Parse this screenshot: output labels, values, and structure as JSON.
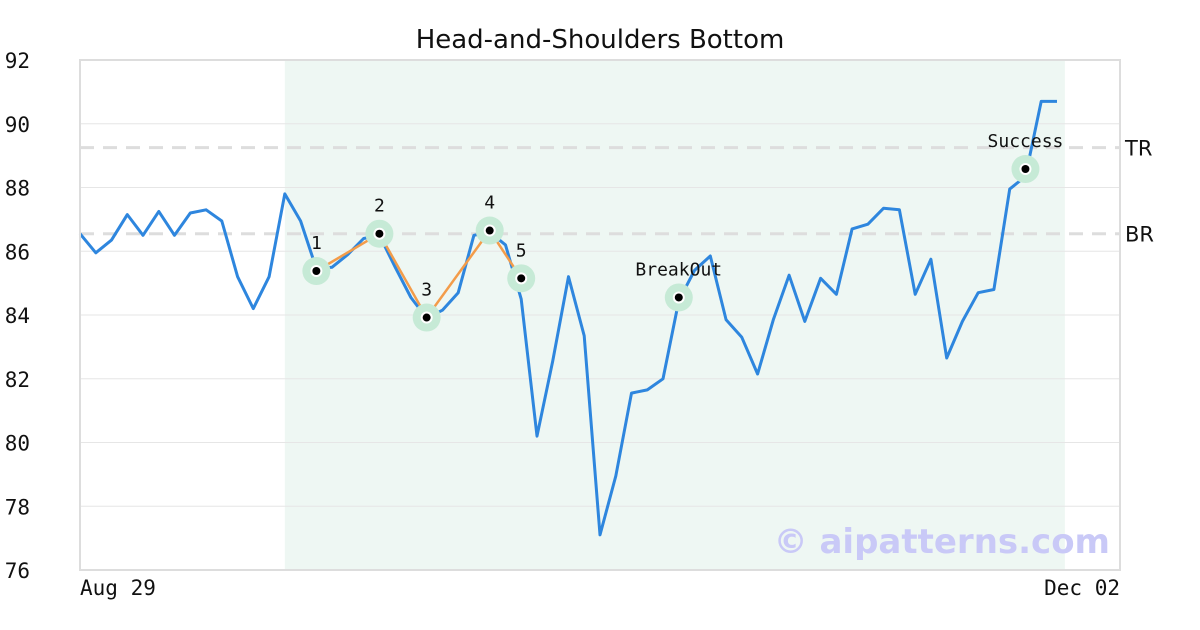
{
  "chart_data": {
    "type": "line",
    "title": "Head-and-Shoulders Bottom",
    "xlabel": "",
    "ylabel": "",
    "ylim": [
      76,
      92
    ],
    "yticks": [
      76,
      78,
      80,
      82,
      84,
      86,
      88,
      90,
      92
    ],
    "x_tick_labels": [
      "Aug 29",
      "Dec 02"
    ],
    "grid": true,
    "x": [
      0,
      1,
      2,
      3,
      4,
      5,
      6,
      7,
      8,
      9,
      10,
      11,
      12,
      13,
      14,
      15,
      16,
      17,
      18,
      19,
      20,
      21,
      22,
      23,
      24,
      25,
      26,
      27,
      28,
      29,
      30,
      31,
      32,
      33,
      34,
      35,
      36,
      37,
      38,
      39,
      40,
      41,
      42,
      43,
      44,
      45,
      46,
      47,
      48,
      49,
      50,
      51,
      52,
      53,
      54,
      55,
      56,
      57,
      58,
      59,
      60,
      61,
      62,
      63,
      64,
      65,
      66
    ],
    "series": [
      {
        "color": "#2e86de",
        "values": [
          86.55,
          85.95,
          86.35,
          87.15,
          86.5,
          87.25,
          86.5,
          87.2,
          87.3,
          86.95,
          85.2,
          84.2,
          85.2,
          87.8,
          86.95,
          85.45,
          85.5,
          85.9,
          86.4,
          86.5,
          85.5,
          84.55,
          83.9,
          84.15,
          84.7,
          86.5,
          86.6,
          86.2,
          84.5,
          80.2,
          82.55,
          85.2,
          83.35,
          77.1,
          78.95,
          81.55,
          81.65,
          82.0,
          84.45,
          85.4,
          85.85,
          83.85,
          83.3,
          82.15,
          83.85,
          85.25,
          83.8,
          85.15,
          84.65,
          86.7,
          86.85,
          87.35,
          87.3,
          84.65,
          85.75,
          82.65,
          83.8,
          84.7,
          84.8,
          87.95,
          88.35,
          90.7,
          90.7,
          null,
          null,
          null,
          null
        ]
      }
    ],
    "pattern_region": {
      "x_start": 13,
      "x_end": 62.5
    },
    "reference_lines": [
      {
        "label": "TR",
        "y": 89.25,
        "color": "#dddddd"
      },
      {
        "label": "BR",
        "y": 86.55,
        "color": "#dddddd"
      }
    ],
    "pattern_points": [
      {
        "label": "1",
        "x": 15,
        "y": 85.38
      },
      {
        "label": "2",
        "x": 19,
        "y": 86.55
      },
      {
        "label": "3",
        "x": 22,
        "y": 83.92
      },
      {
        "label": "4",
        "x": 26,
        "y": 86.65
      },
      {
        "label": "5",
        "x": 28,
        "y": 85.15
      },
      {
        "label": "BreakOut",
        "x": 38,
        "y": 84.55
      },
      {
        "label": "Success",
        "x": 60,
        "y": 88.58
      }
    ],
    "pattern_line_color": "#f39c4a",
    "highlight_color": "#c6ead6",
    "region_color": "#eef7f3",
    "watermark": "© aipatterns.com",
    "watermark_color": "#c9c9f7"
  }
}
